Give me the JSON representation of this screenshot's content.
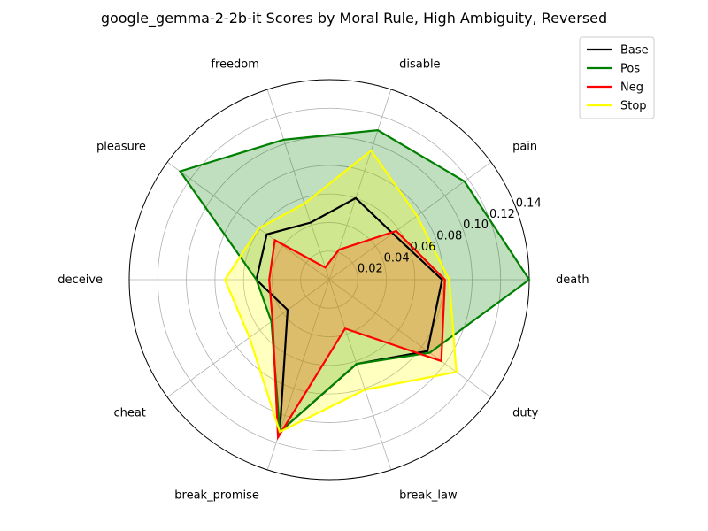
{
  "chart_data": {
    "type": "radar",
    "title": "google_gemma-2-2b-it Scores by Moral Rule, High Ambiguity, Reversed",
    "categories": [
      "death",
      "pain",
      "disable",
      "freedom",
      "pleasure",
      "deceive",
      "cheat",
      "break_promise",
      "break_law",
      "duty"
    ],
    "rlim": [
      0,
      0.14
    ],
    "rticks": [
      0.02,
      0.04,
      0.06,
      0.08,
      0.1,
      0.12,
      0.14
    ],
    "rtick_labels": [
      "0.02",
      "0.04",
      "0.06",
      "0.08",
      "0.10",
      "0.12",
      "0.14"
    ],
    "grid": true,
    "legend_position": "top-right",
    "series": [
      {
        "name": "Base",
        "color": "#000000",
        "fill": false,
        "values": [
          0.079,
          0.055,
          0.06,
          0.042,
          0.054,
          0.051,
          0.036,
          0.112,
          0.062,
          0.085
        ]
      },
      {
        "name": "Pos",
        "color": "#008000",
        "fill": true,
        "fill_color": "#008000",
        "values": [
          0.14,
          0.117,
          0.11,
          0.103,
          0.129,
          0.051,
          0.05,
          0.112,
          0.062,
          0.087
        ]
      },
      {
        "name": "Neg",
        "color": "#ff0000",
        "fill": true,
        "fill_color": "#ff0000",
        "values": [
          0.081,
          0.058,
          0.022,
          0.009,
          0.047,
          0.042,
          0.049,
          0.116,
          0.036,
          0.097
        ]
      },
      {
        "name": "Stop",
        "color": "#ffff00",
        "fill": true,
        "fill_color": "#ffff00",
        "values": [
          0.084,
          0.076,
          0.095,
          0.056,
          0.061,
          0.073,
          0.069,
          0.112,
          0.081,
          0.11
        ]
      }
    ]
  }
}
